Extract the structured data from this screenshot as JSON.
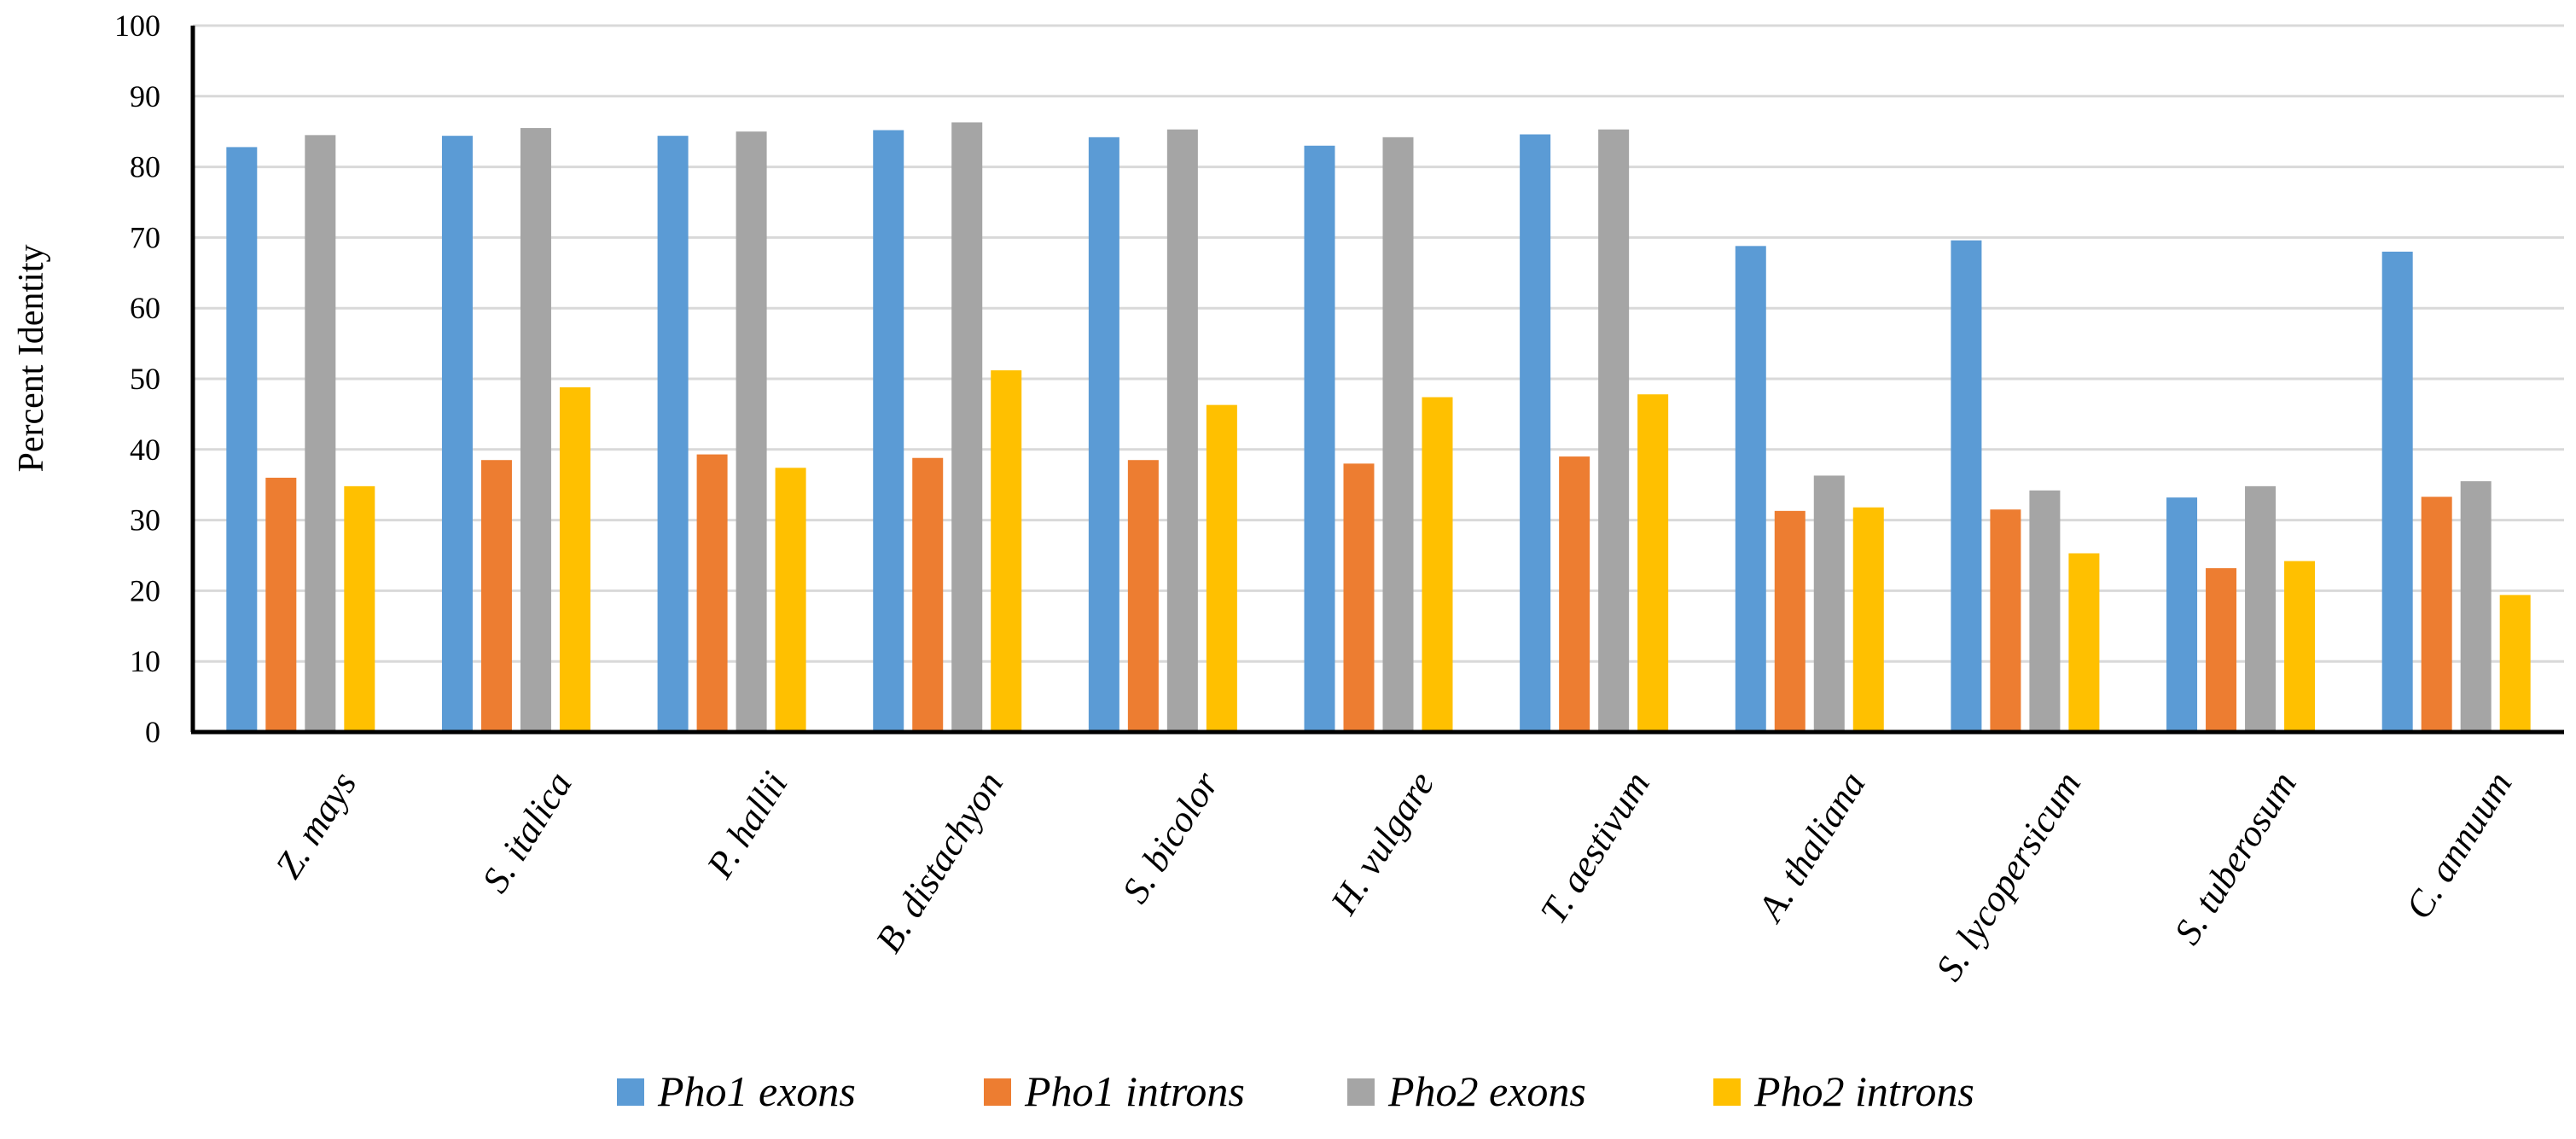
{
  "chart_data": {
    "type": "bar",
    "title": "",
    "xlabel": "",
    "ylabel": "Percent Identity",
    "ylim": [
      0,
      100
    ],
    "ytick_step": 10,
    "grid": true,
    "legend_position": "bottom",
    "categories": [
      "Z. mays",
      "S. italica",
      "P. hallii",
      "B. distachyon",
      "S. bicolor",
      "H. vulgare",
      "T. aestivum",
      "A. thaliana",
      "S. lycopersicum",
      "S. tuberosum",
      "C. annuum"
    ],
    "series": [
      {
        "name": "Pho1 exons",
        "color": "#5B9BD5",
        "values": [
          82.8,
          84.4,
          84.4,
          85.2,
          84.2,
          83.0,
          84.6,
          68.8,
          69.6,
          33.2,
          68.0
        ]
      },
      {
        "name": "Pho1 introns",
        "color": "#ED7D31",
        "values": [
          36.0,
          38.5,
          39.3,
          38.8,
          38.5,
          38.0,
          39.0,
          31.3,
          31.5,
          23.2,
          33.3
        ]
      },
      {
        "name": "Pho2 exons",
        "color": "#A5A5A5",
        "values": [
          84.5,
          85.5,
          85.0,
          86.3,
          85.3,
          84.2,
          85.3,
          36.3,
          34.2,
          34.8,
          35.5
        ]
      },
      {
        "name": "Pho2 introns",
        "color": "#FFC000",
        "values": [
          34.8,
          48.8,
          37.4,
          51.2,
          46.3,
          47.4,
          47.8,
          31.8,
          25.3,
          24.2,
          19.4
        ]
      }
    ]
  }
}
